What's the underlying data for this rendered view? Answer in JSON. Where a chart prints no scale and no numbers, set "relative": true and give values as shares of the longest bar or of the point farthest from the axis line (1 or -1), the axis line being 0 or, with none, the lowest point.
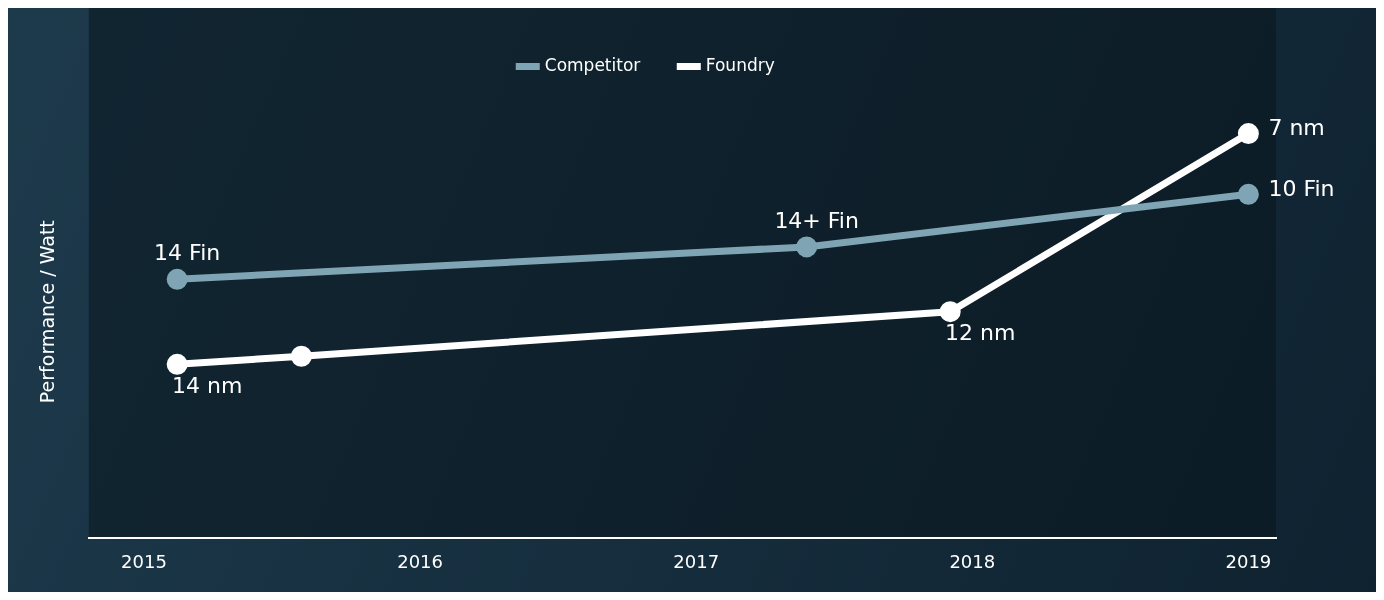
{
  "chart_data": {
    "type": "line",
    "relative": true,
    "ylabel": "Performance / Watt",
    "legend": "top",
    "marker": "circle",
    "grid": false,
    "xlim": [
      2014.8,
      2019.1
    ],
    "xticks": [
      2015,
      2016,
      2017,
      2018,
      2019
    ],
    "series": [
      {
        "name": "Competitor",
        "color": "#7fa4b4",
        "x": [
          2015.12,
          2017.4,
          2019
        ],
        "values": [
          0.64,
          0.72,
          0.85
        ]
      },
      {
        "name": "Foundry",
        "color": "#ffffff",
        "x": [
          2015.12,
          2015.57,
          2017.92,
          2019
        ],
        "values": [
          0.43,
          0.45,
          0.56,
          1
        ]
      }
    ],
    "annotations": [
      {
        "text": "14 Fin",
        "x": 2015.12,
        "y": 0.64
      },
      {
        "text": "14+ Fin",
        "x": 2017.4,
        "y": 0.72
      },
      {
        "text": "10 Fin",
        "x": 2019,
        "y": 0.85
      },
      {
        "text": "14 nm",
        "x": 2015.12,
        "y": 0.43
      },
      {
        "text": "12 nm",
        "x": 2017.92,
        "y": 0.56
      },
      {
        "text": "7 nm",
        "x": 2019,
        "y": 1
      }
    ]
  }
}
